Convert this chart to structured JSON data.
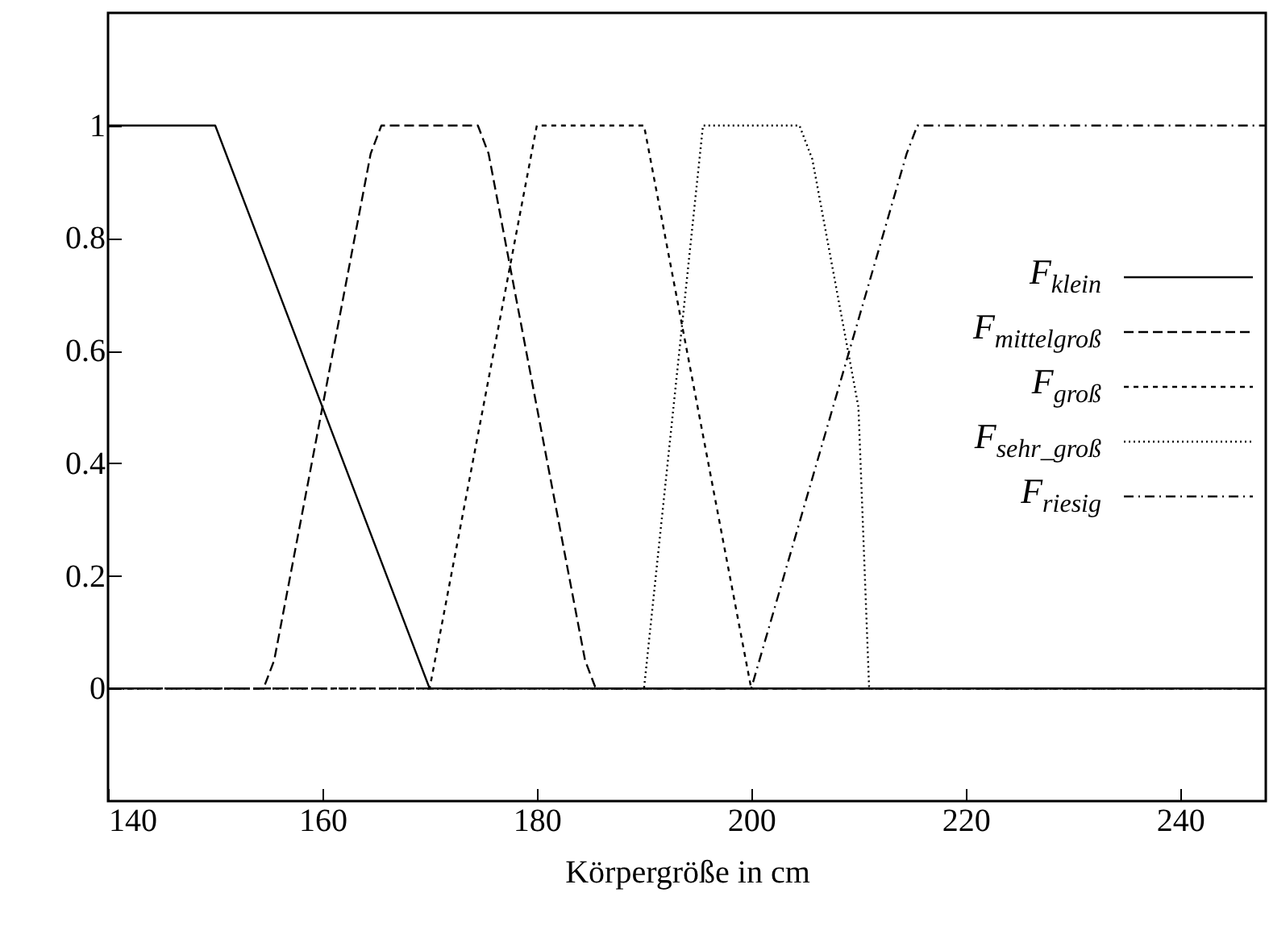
{
  "chart_data": {
    "type": "line",
    "xlabel": "Körpergröße in cm",
    "xlim": [
      140,
      248
    ],
    "xticks": [
      140,
      160,
      180,
      200,
      220,
      240
    ],
    "ylim": [
      -0.2,
      1.2
    ],
    "yticks": [
      0,
      0.2,
      0.4,
      0.6,
      0.8,
      1
    ],
    "legend": "right",
    "grid": false,
    "marker": "none",
    "series": [
      {
        "name": "F$_{klein}$",
        "color": "#000000",
        "line_style": "solid",
        "x": [
          140,
          150,
          170,
          248
        ],
        "values": [
          1,
          1,
          0,
          0
        ]
      },
      {
        "name": "F$_{mittelgroß}$",
        "color": "#000000",
        "line_style": "dashed",
        "x": [
          140,
          154.5,
          155.5,
          164.5,
          165.5,
          174.5,
          175.5,
          184.5,
          185.5,
          248
        ],
        "values": [
          0,
          0,
          0.05,
          0.95,
          1,
          1,
          0.95,
          0.05,
          0,
          0
        ]
      },
      {
        "name": "F$_{groß}$",
        "color": "#000000",
        "line_style": "short-dashed",
        "x": [
          140,
          170,
          180,
          190,
          200,
          248
        ],
        "values": [
          0,
          0,
          1,
          1,
          0,
          0
        ]
      },
      {
        "name": "F$_{sehr_groß}$",
        "color": "#000000",
        "line_style": "dotted",
        "x": [
          140,
          190,
          195.5,
          204.5,
          205.7,
          210,
          211,
          248
        ],
        "values": [
          0,
          0,
          1,
          1,
          0.94,
          0.5,
          0,
          0
        ]
      },
      {
        "name": "F$_{riesig}$",
        "color": "#000000",
        "line_style": "dashdot",
        "x": [
          140,
          200,
          214.5,
          215.5,
          248
        ],
        "values": [
          0,
          0,
          0.95,
          1,
          1
        ]
      }
    ]
  }
}
